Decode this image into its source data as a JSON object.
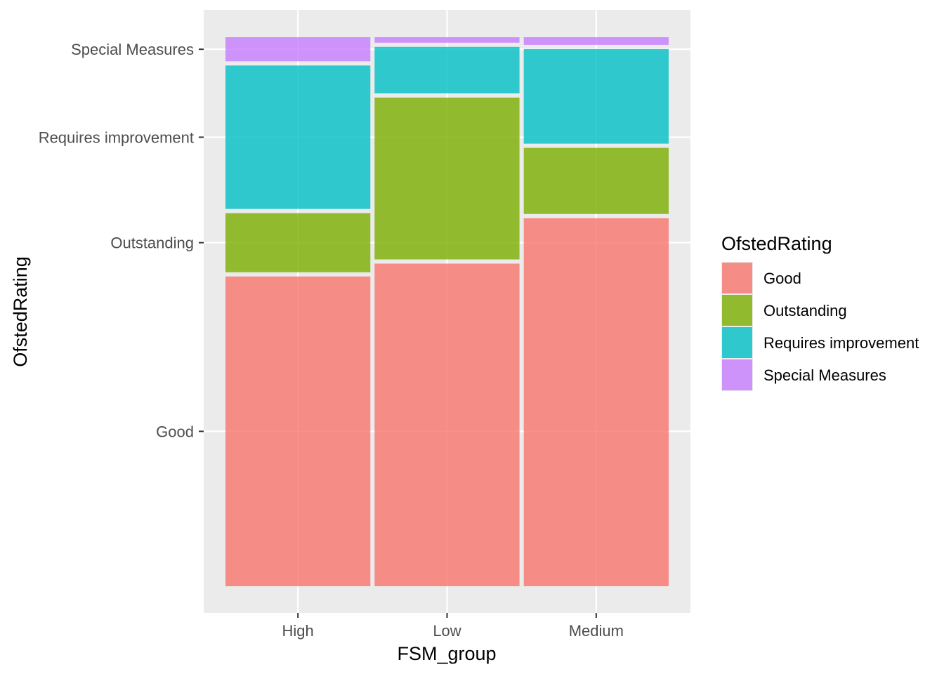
{
  "chart_data": {
    "type": "mosaic",
    "xlabel": "FSM_group",
    "ylabel": "OfstedRating",
    "grid": true,
    "legend_position": "right",
    "legend": {
      "title": "OfstedRating",
      "entries": [
        {
          "name": "Good",
          "color": "#F8766D"
        },
        {
          "name": "Outstanding",
          "color": "#7CAE00"
        },
        {
          "name": "Requires improvement",
          "color": "#00BFC4"
        },
        {
          "name": "Special Measures",
          "color": "#C77CFF"
        }
      ]
    },
    "categories": [
      "High",
      "Low",
      "Medium"
    ],
    "column_widths": [
      0.333,
      0.333,
      0.333
    ],
    "y_tick_labels": [
      "Good",
      "Outstanding",
      "Requires improvement",
      "Special Measures"
    ],
    "series": [
      {
        "name": "Good",
        "values": [
          0.566,
          0.59,
          0.673
        ]
      },
      {
        "name": "Outstanding",
        "values": [
          0.108,
          0.296,
          0.121
        ]
      },
      {
        "name": "Requires improvement",
        "values": [
          0.262,
          0.085,
          0.173
        ]
      },
      {
        "name": "Special Measures",
        "values": [
          0.044,
          0.01,
          0.014
        ]
      }
    ]
  }
}
